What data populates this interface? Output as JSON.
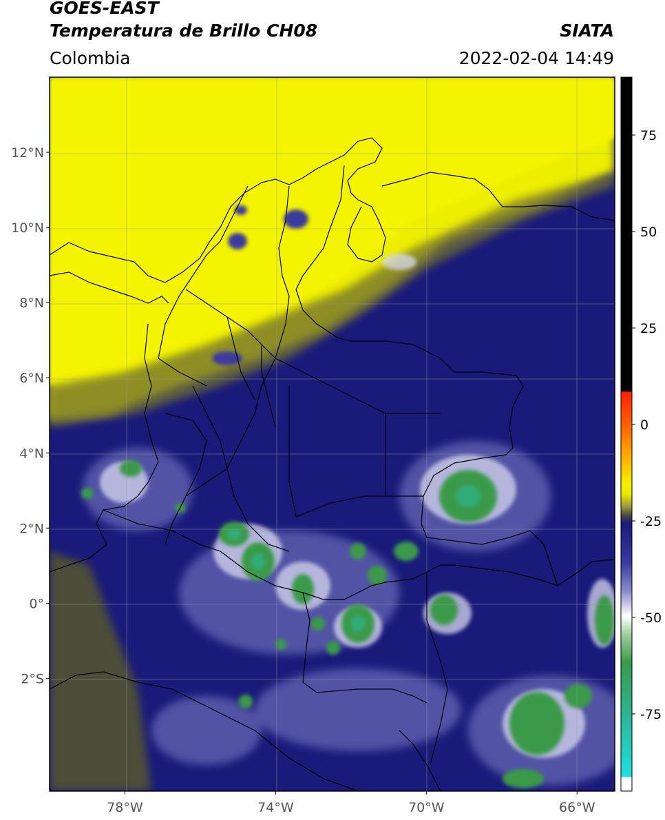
{
  "header": {
    "satellite": "GOES-EAST",
    "product": "Temperatura de Brillo CH08",
    "brand": "SIATA",
    "region": "Colombia",
    "timestamp": "2022-02-04 14:49"
  },
  "map": {
    "lon_range": [
      -80,
      -65
    ],
    "lat_range": [
      -5,
      14
    ],
    "lat_ticks": [
      {
        "value": 12,
        "label": "12°N"
      },
      {
        "value": 10,
        "label": "10°N"
      },
      {
        "value": 8,
        "label": "8°N"
      },
      {
        "value": 6,
        "label": "6°N"
      },
      {
        "value": 4,
        "label": "4°N"
      },
      {
        "value": 2,
        "label": "2°N"
      },
      {
        "value": 0,
        "label": "0°"
      },
      {
        "value": -2,
        "label": "2°S"
      }
    ],
    "lon_ticks": [
      {
        "value": -78,
        "label": "78°W"
      },
      {
        "value": -74,
        "label": "74°W"
      },
      {
        "value": -70,
        "label": "70°W"
      },
      {
        "value": -66,
        "label": "66°W"
      }
    ],
    "grid": true
  },
  "colorbar": {
    "range": [
      -95,
      90
    ],
    "ticks": [
      {
        "value": 75,
        "label": "75"
      },
      {
        "value": 50,
        "label": "50"
      },
      {
        "value": 25,
        "label": "25"
      },
      {
        "value": 0,
        "label": "0"
      },
      {
        "value": -25,
        "label": "-25"
      },
      {
        "value": -50,
        "label": "-50"
      },
      {
        "value": -75,
        "label": "-75"
      }
    ]
  },
  "colors": {
    "warm_yellow": "#f2f200",
    "olive": "#6b6b2a",
    "navy": "#1a1a7a",
    "blue_light": "#5c60b0",
    "white": "#ffffff",
    "green": "#3a9a4a",
    "teal": "#2ab89a",
    "cyan": "#20e0e0",
    "red": "#ff2200",
    "orange": "#ff9900",
    "black": "#000000"
  }
}
